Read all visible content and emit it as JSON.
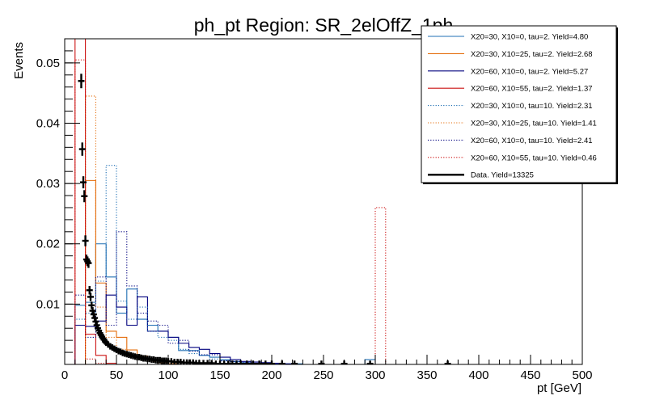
{
  "chart_data": {
    "type": "step-histogram",
    "title": "ph_pt Region: SR_2elOffZ_1ph",
    "xlabel": "pt [GeV]",
    "ylabel": "Events",
    "xlim": [
      0,
      500
    ],
    "ylim": [
      0,
      0.054
    ],
    "xticks": [
      0,
      50,
      100,
      150,
      200,
      250,
      300,
      350,
      400,
      450,
      500
    ],
    "yticks": [
      0.01,
      0.02,
      0.03,
      0.04,
      0.05
    ],
    "bin_width": 10,
    "legend_position": "top-right",
    "series": [
      {
        "name": "X20=30, X10=0, tau=2. Yield=4.80",
        "color": "#1f6fb4",
        "style": "solid",
        "x": [
          10,
          20,
          30,
          40,
          50,
          60,
          70,
          80,
          90,
          100,
          110,
          120,
          130,
          140,
          150,
          160,
          170,
          180,
          190,
          200,
          210,
          220,
          230,
          240,
          250,
          260,
          270,
          280,
          290,
          300
        ],
        "values": [
          0.0098,
          0.0103,
          0.02,
          0.0145,
          0.0085,
          0.0125,
          0.0075,
          0.0065,
          0.0055,
          0.0045,
          0.0023,
          0.0023,
          0.0015,
          0.0012,
          0.0008,
          0.0005,
          0.0003,
          0.0002,
          0.0001,
          0.0001,
          0.0001,
          0.0001,
          0,
          0,
          0,
          0,
          0,
          0,
          0.0008,
          0
        ]
      },
      {
        "name": "X20=30, X10=25, tau=2. Yield=2.68",
        "color": "#e46c0a",
        "style": "solid",
        "x": [
          10,
          20,
          30,
          40,
          50,
          60,
          70,
          80,
          90,
          100
        ],
        "values": [
          0,
          0.0305,
          0.0135,
          0.0055,
          0.0045,
          0.0024,
          0.0014,
          0.0007,
          0.0003,
          0.0001
        ]
      },
      {
        "name": "X20=60, X10=0, tau=2. Yield=5.27",
        "color": "#00007f",
        "style": "solid",
        "x": [
          10,
          20,
          30,
          40,
          50,
          60,
          70,
          80,
          90,
          100,
          110,
          120,
          130,
          140,
          150,
          160,
          170,
          180,
          190,
          200,
          210,
          220
        ],
        "values": [
          0.0065,
          0.0063,
          0.0072,
          0.0115,
          0.0095,
          0.0065,
          0.0112,
          0.0055,
          0.0055,
          0.0045,
          0.0035,
          0.0028,
          0.0025,
          0.0018,
          0.0012,
          0.0008,
          0.0005,
          0.0004,
          0.0003,
          0.0002,
          0.0001,
          0
        ]
      },
      {
        "name": "X20=60, X10=55, tau=2. Yield=1.37",
        "color": "#cc1111",
        "style": "solid",
        "x": [
          10,
          20,
          30,
          40,
          50,
          60
        ],
        "values": [
          0.054,
          0.005,
          0.0015,
          0.0002,
          0,
          0
        ]
      },
      {
        "name": "X20=30, X10=0, tau=10. Yield=2.31",
        "color": "#1f6fb4",
        "style": "dotted",
        "x": [
          10,
          20,
          30,
          40,
          50,
          60,
          70,
          80,
          90,
          100,
          110,
          120,
          130,
          140,
          150,
          160,
          170,
          180,
          190,
          200
        ],
        "values": [
          0.0075,
          0.0085,
          0.0138,
          0.033,
          0.0105,
          0.0075,
          0.0095,
          0.0055,
          0.0045,
          0.004,
          0.0025,
          0.0018,
          0.0015,
          0.0009,
          0.0006,
          0.0004,
          0.0002,
          0.0002,
          0.0001,
          0
        ]
      },
      {
        "name": "X20=30, X10=25, tau=10. Yield=1.41",
        "color": "#e46c0a",
        "style": "dotted",
        "x": [
          10,
          20,
          30,
          40,
          50,
          60,
          70,
          80,
          90,
          100
        ],
        "values": [
          0,
          0.0445,
          0.0095,
          0.0045,
          0.0025,
          0.0015,
          0.0009,
          0.0005,
          0.0002,
          0.0001
        ]
      },
      {
        "name": "X20=60, X10=0, tau=10. Yield=2.41",
        "color": "#00007f",
        "style": "dotted",
        "x": [
          10,
          20,
          30,
          40,
          50,
          60,
          70,
          80,
          90,
          100,
          110,
          120,
          130,
          140,
          150,
          160,
          170,
          180,
          190,
          200,
          210
        ],
        "values": [
          0.0115,
          0.0045,
          0.0145,
          0.0065,
          0.022,
          0.013,
          0.0085,
          0.0072,
          0.0065,
          0.0035,
          0.004,
          0.0022,
          0.0016,
          0.0016,
          0.0006,
          0.0005,
          0.0003,
          0.0002,
          0.0002,
          0.0001,
          0
        ]
      },
      {
        "name": "X20=60, X10=55, tau=10. Yield=0.46",
        "color": "#cc1111",
        "style": "dotted",
        "x": [
          10,
          20,
          30,
          40,
          50,
          60,
          300
        ],
        "values": [
          0.0505,
          0.0009,
          0.0002,
          0,
          0,
          0,
          0.026
        ]
      }
    ],
    "data_points": {
      "name": "Data. Yield=13325",
      "color": "#000000",
      "x": [
        16,
        17,
        18,
        19,
        20,
        21,
        22,
        23,
        24,
        25,
        26,
        27,
        28,
        29,
        30,
        31,
        32,
        33,
        34,
        35,
        36,
        37,
        38,
        39,
        40,
        42,
        44,
        46,
        48,
        50,
        52,
        54,
        56,
        58,
        60,
        62,
        64,
        66,
        68,
        70,
        72,
        74,
        76,
        78,
        80,
        82,
        84,
        86,
        88,
        90,
        92,
        94,
        96,
        98,
        100,
        103,
        106,
        109,
        112,
        115,
        118,
        121,
        124,
        127,
        130,
        134,
        138,
        142,
        146,
        150,
        154,
        158,
        162,
        166,
        170,
        176,
        182,
        188,
        194,
        200,
        210,
        222,
        248,
        270,
        295,
        370
      ],
      "y": [
        0.047,
        0.0357,
        0.0302,
        0.0279,
        0.0205,
        0.0174,
        0.0171,
        0.0168,
        0.0123,
        0.0112,
        0.0098,
        0.0089,
        0.0083,
        0.0077,
        0.0071,
        0.0065,
        0.006,
        0.0056,
        0.0052,
        0.0049,
        0.0046,
        0.0043,
        0.0041,
        0.0038,
        0.0036,
        0.0033,
        0.003,
        0.0028,
        0.0026,
        0.0024,
        0.0022,
        0.0021,
        0.0019,
        0.0018,
        0.0017,
        0.0016,
        0.0015,
        0.0014,
        0.0013,
        0.0012,
        0.0012,
        0.0011,
        0.001,
        0.001,
        0.0009,
        0.0009,
        0.0008,
        0.0008,
        0.0007,
        0.0007,
        0.0007,
        0.0006,
        0.0006,
        0.0006,
        0.0005,
        0.0005,
        0.0004,
        0.0004,
        0.0004,
        0.0003,
        0.0003,
        0.0003,
        0.0003,
        0.0002,
        0.0002,
        0.0002,
        0.0002,
        0.0002,
        0.0001,
        0.0001,
        0.0001,
        0.0001,
        0.0001,
        0.0001,
        0.0001,
        0.0001,
        0.0001,
        0.0001,
        0.0001,
        0.0001,
        0.0001,
        0.0001,
        0.0001,
        0.0001,
        0.0001,
        0.0001
      ],
      "yerr": [
        0.0012,
        0.0011,
        0.001,
        0.001,
        0.0009,
        0.0008,
        0.0008,
        0.0008,
        0.0007,
        0.0007,
        0.0006,
        0.0006,
        0.0006,
        0.0006,
        0.0005,
        0.0005,
        0.0005,
        0.0005,
        0.0005,
        0.0004,
        0.0004,
        0.0004,
        0.0004,
        0.0004,
        0.0004,
        0.0003,
        0.0003,
        0.0003,
        0.0003,
        0.0003,
        0.0003,
        0.0003,
        0.0003,
        0.0003,
        0.0002,
        0.0002,
        0.0002,
        0.0002,
        0.0002,
        0.0002,
        0.0002,
        0.0002,
        0.0002,
        0.0002,
        0.0002,
        0.0002,
        0.0002,
        0.0002,
        0.0002,
        0.0002,
        0.0002,
        0.0002,
        0.0002,
        0.0002,
        0.0002,
        0.0002,
        0.0001,
        0.0001,
        0.0001,
        0.0001,
        0.0001,
        0.0001,
        0.0001,
        0.0001,
        0.0001,
        0.0001,
        0.0001,
        0.0001,
        0.0001,
        0.0001,
        0.0001,
        0.0001,
        0.0001,
        0.0001,
        0.0001,
        0.0001,
        0.0001,
        0.0001,
        0.0001,
        0.0001,
        0.0001,
        0.0001,
        0.0001,
        0.0001,
        0.0001,
        0.0001
      ]
    }
  }
}
